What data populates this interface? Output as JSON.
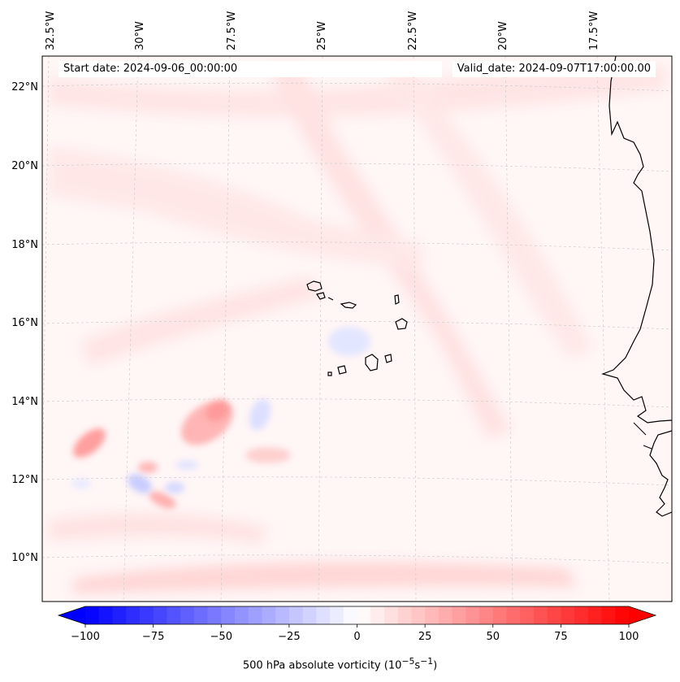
{
  "header": {
    "start_date": "Start date: 2024-09-06_00:00:00",
    "valid_date": "Valid_date: 2024-09-07T17:00:00.00"
  },
  "map": {
    "longitude_labels": [
      "32.5°W",
      "30°W",
      "27.5°W",
      "25°W",
      "22.5°W",
      "20°W",
      "17.5°W"
    ],
    "latitude_labels": [
      "22°N",
      "20°N",
      "18°N",
      "16°N",
      "14°N",
      "12°N",
      "10°N"
    ],
    "background_color": "#fff6f6",
    "positive_color": "#ff0000",
    "negative_color": "#0000ff",
    "coastline_color": "#000000"
  },
  "colorbar": {
    "label": "500 hPa absolute vorticity (10",
    "label_exp1": "−5",
    "label_mid": "s",
    "label_exp2": "−1",
    "label_end": ")",
    "ticks": [
      "−100",
      "−75",
      "−50",
      "−25",
      "0",
      "25",
      "50",
      "75",
      "100"
    ],
    "min": -100,
    "max": 100
  }
}
